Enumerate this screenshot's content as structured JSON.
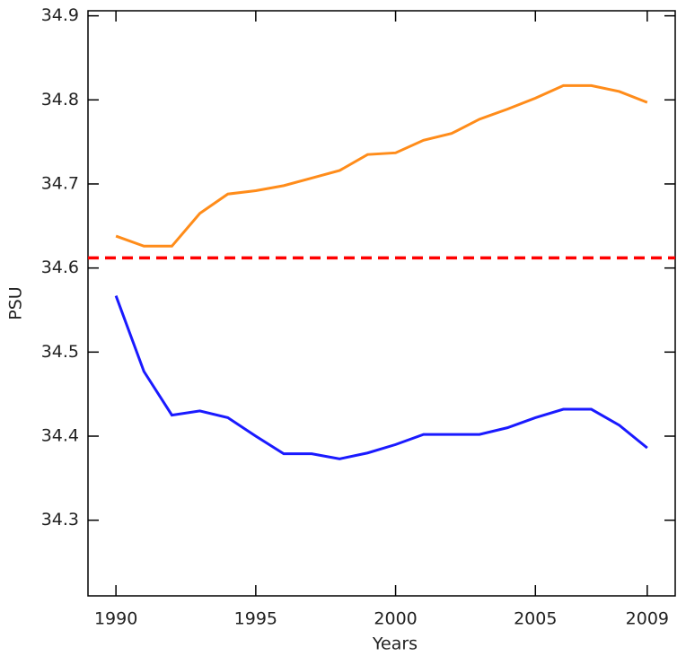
{
  "chart_data": {
    "type": "line",
    "x_label": "Years",
    "y_label": "PSU",
    "x": [
      1990,
      1991,
      1992,
      1993,
      1994,
      1995,
      1996,
      1997,
      1998,
      1999,
      2000,
      2001,
      2002,
      2003,
      2004,
      2005,
      2006,
      2007,
      2008,
      2009
    ],
    "series": [
      {
        "color": "#ff8c1a",
        "values": [
          34.638,
          34.626,
          34.626,
          34.665,
          34.688,
          34.692,
          34.698,
          34.707,
          34.716,
          34.735,
          34.737,
          34.752,
          34.76,
          34.777,
          34.789,
          34.802,
          34.817,
          34.817,
          34.81,
          34.797
        ]
      },
      {
        "color": "#1a1aff",
        "values": [
          34.567,
          34.477,
          34.425,
          34.43,
          34.422,
          34.4,
          34.379,
          34.379,
          34.373,
          34.38,
          34.39,
          34.402,
          34.402,
          34.402,
          34.41,
          34.422,
          34.432,
          34.432,
          34.413,
          34.386
        ]
      }
    ],
    "hline": {
      "value": 34.612,
      "color": "#ff0000"
    },
    "xlim": [
      1989,
      2010
    ],
    "xticks": [
      1990,
      1995,
      2000,
      2005,
      2009
    ],
    "ylim": [
      34.21,
      34.906
    ],
    "yticks": [
      34.3,
      34.4,
      34.5,
      34.6,
      34.7,
      34.8,
      34.9
    ]
  }
}
